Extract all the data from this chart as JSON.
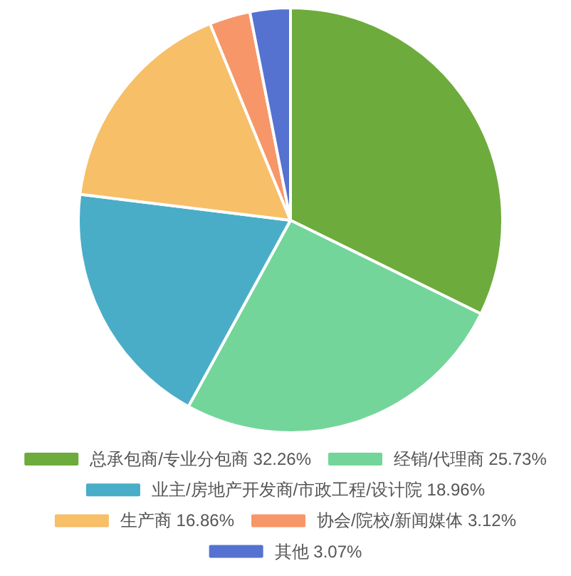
{
  "chart_data": {
    "type": "pie",
    "categories": [
      "总承包商/专业分包商",
      "经销/代理商",
      "业主/房地产开发商/市政工程/设计院",
      "生产商",
      "协会/院校/新闻媒体",
      "其他"
    ],
    "values": [
      32.26,
      25.73,
      18.96,
      16.86,
      3.12,
      3.07
    ],
    "value_labels": [
      "32.26%",
      "25.73%",
      "18.96%",
      "16.86%",
      "3.12%",
      "3.07%"
    ],
    "colors": [
      "#6dab3c",
      "#73d59a",
      "#4aadc8",
      "#f6bf68",
      "#f79668",
      "#5572d1"
    ],
    "legend": "bottom"
  }
}
